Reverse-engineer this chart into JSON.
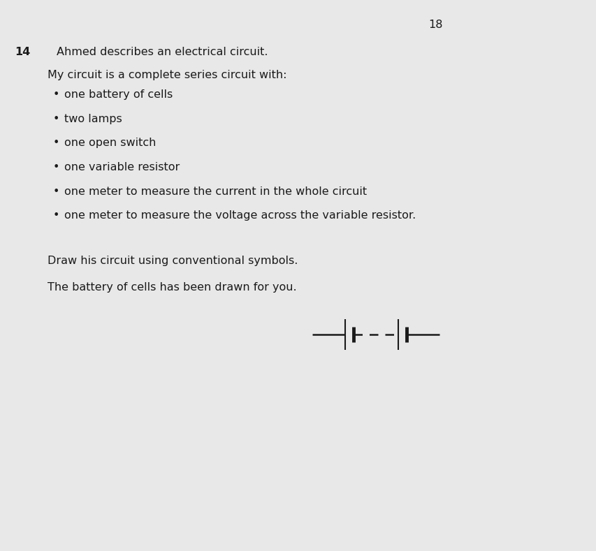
{
  "page_number": "18",
  "question_number": "14",
  "question_text": "Ahmed describes an electrical circuit.",
  "body_text": "My circuit is a complete series circuit with:",
  "bullets": [
    "one battery of cells",
    "two lamps",
    "one open switch",
    "one variable resistor",
    "one meter to measure the current in the whole circuit",
    "one meter to measure the voltage across the variable resistor."
  ],
  "instruction1": "Draw his circuit using conventional symbols.",
  "instruction2": "The battery of cells has been drawn for you.",
  "background_color": "#e8e8e8",
  "text_color": "#1a1a1a",
  "figsize": [
    8.54,
    7.89
  ],
  "dpi": 100
}
